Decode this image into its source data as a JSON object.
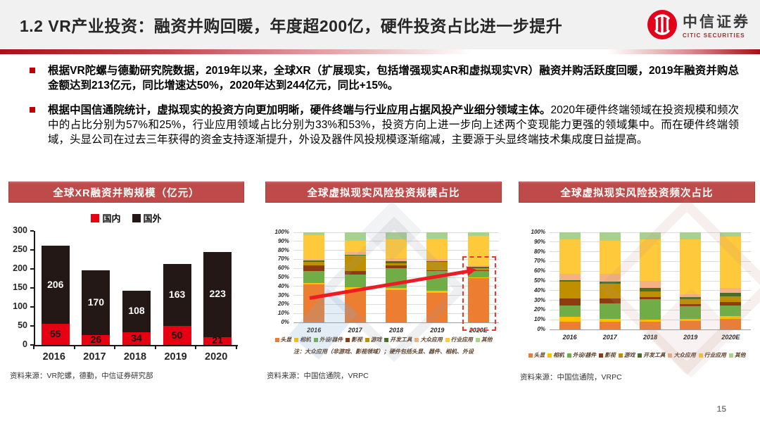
{
  "header": {
    "title": "1.2 VR产业投资：融资并购回暖，年度超200亿，硬件投资占比进一步提升",
    "logo_cn": "中信证券",
    "logo_en": "CITIC SECURITIES"
  },
  "bullets": [
    {
      "bold": "根据VR陀螺与德勤研究院数据，2019年以来，全球XR（扩展现实，包括增强现实AR和虚拟现实VR）融资并购活跃度回暖，2019年融资并购总金额达到213亿元，同比增速达50%，2020年达到244亿元，同比+15%。",
      "rest": ""
    },
    {
      "bold": "根据中国信通院统计，虚拟现实的投资方向更加明晰，硬件终端与行业应用占据风投产业细分领域主体。",
      "rest": "2020年硬件终端领域在投资规模和频次中的占比分别为57%和25%，行业应用领域占比分别为33%和53%，投资方向上进一步向上述两个变现能力更强的领域集中。而在硬件终端领域，头显公司在过去三年获得的资金支持逐渐提升，外设及器件风投规模逐渐缩减，主要源于头显终端技术集成度日益提高。"
    }
  ],
  "chart_data": [
    {
      "type": "bar",
      "title": "全球XR融资并购规模（亿元）",
      "categories": [
        "2016",
        "2017",
        "2018",
        "2019",
        "2020"
      ],
      "series": [
        {
          "name": "国内",
          "color": "#E60012",
          "label_color": "#141414",
          "values": [
            55,
            26,
            34,
            50,
            21
          ]
        },
        {
          "name": "国外",
          "color": "#231815",
          "label_color": "#ffffff",
          "values": [
            206,
            170,
            108,
            163,
            223
          ]
        }
      ],
      "stacked": true,
      "ylim": [
        0,
        300
      ],
      "yticks": [
        0,
        50,
        100,
        150,
        200,
        250,
        300
      ],
      "legend_position": "top",
      "grid": false,
      "source": "资料来源：VR陀螺，德勤，中信证券研究部"
    },
    {
      "type": "bar",
      "title": "全球虚拟现实风险投资规模占比",
      "categories": [
        "2016",
        "2017",
        "2018",
        "2019",
        "2020E"
      ],
      "series": [
        {
          "name": "头显",
          "color": "#ED7D31",
          "values": [
            42,
            36,
            36,
            33,
            49
          ]
        },
        {
          "name": "相机",
          "color": "#FFC000",
          "values": [
            2,
            3,
            2,
            2,
            1
          ]
        },
        {
          "name": "外设/器件",
          "color": "#70AD47",
          "values": [
            13,
            14,
            22,
            22,
            7
          ]
        },
        {
          "name": "影视",
          "color": "#8E3B12",
          "values": [
            6,
            4,
            3,
            1,
            1
          ]
        },
        {
          "name": "游戏",
          "color": "#BF8F00",
          "values": [
            4,
            17,
            3,
            9,
            2
          ]
        },
        {
          "name": "开发工具",
          "color": "#4A6E28",
          "values": [
            2,
            1,
            2,
            1,
            2
          ]
        },
        {
          "name": "大众应用",
          "color": "#F4B183",
          "values": [
            1,
            3,
            3,
            2,
            1
          ]
        },
        {
          "name": "行业应用",
          "color": "#FFC93C",
          "values": [
            27,
            13,
            21,
            23,
            33
          ]
        },
        {
          "name": "其他",
          "color": "#A9D18E",
          "values": [
            3,
            9,
            8,
            7,
            4
          ]
        }
      ],
      "stacked": true,
      "percent": true,
      "ylim": [
        0,
        100
      ],
      "yticks": [
        0,
        10,
        20,
        30,
        40,
        50,
        60,
        70,
        80,
        90,
        100
      ],
      "legend_position": "bottom",
      "grid": true,
      "annotations": {
        "trend_arrow": true,
        "highlight_box_category": "2020E"
      },
      "note": "注：大众应用（非游戏、影视领域）；硬件包括头显、器件、相机、外设",
      "source": "资料来源：中国信通院，VRPC"
    },
    {
      "type": "bar",
      "title": "全球虚拟现实风险投资频次占比",
      "categories": [
        "2016",
        "2017",
        "2018",
        "2019",
        "2020E"
      ],
      "series": [
        {
          "name": "头显",
          "color": "#ED7D31",
          "values": [
            8,
            8,
            8,
            9,
            11
          ]
        },
        {
          "name": "相机",
          "color": "#FFC000",
          "values": [
            5,
            3,
            2,
            2,
            3
          ]
        },
        {
          "name": "外设/器件",
          "color": "#70AD47",
          "values": [
            12,
            16,
            21,
            13,
            11
          ]
        },
        {
          "name": "影视",
          "color": "#8E3B12",
          "values": [
            7,
            5,
            2,
            2,
            3
          ]
        },
        {
          "name": "游戏",
          "color": "#BF8F00",
          "values": [
            17,
            15,
            6,
            5,
            6
          ]
        },
        {
          "name": "开发工具",
          "color": "#4A6E28",
          "values": [
            2,
            2,
            4,
            2,
            4
          ]
        },
        {
          "name": "大众应用",
          "color": "#F4B183",
          "values": [
            6,
            8,
            7,
            3,
            5
          ]
        },
        {
          "name": "行业应用",
          "color": "#FFC93C",
          "values": [
            36,
            34,
            43,
            57,
            53
          ]
        },
        {
          "name": "其他",
          "color": "#A9D18E",
          "values": [
            7,
            9,
            7,
            7,
            4
          ]
        }
      ],
      "stacked": true,
      "percent": true,
      "ylim": [
        0,
        100
      ],
      "yticks": [
        0,
        10,
        20,
        30,
        40,
        50,
        60,
        70,
        80,
        90,
        100
      ],
      "legend_position": "bottom",
      "grid": true,
      "source": "资料来源：中国信通院，VRPC"
    }
  ],
  "page_number": "15"
}
